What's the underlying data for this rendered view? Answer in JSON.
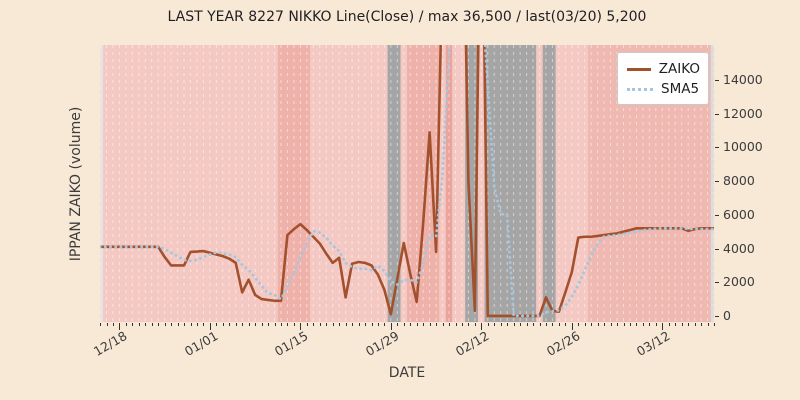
{
  "title": "LAST YEAR 8227 NIKKO Line(Close) / max 36,500 / last(03/20) 5,200",
  "ylabel": "IPPAN ZAIKO (volume)",
  "xlabel": "DATE",
  "legend": [
    {
      "label": "ZAIKO"
    },
    {
      "label": "SMA5"
    }
  ],
  "colors": {
    "figure_bg": "#f8e9d7",
    "plot_bg": "#f4c9c3",
    "zaiko_line": "#a3512d",
    "sma5_line": "#a6c6de",
    "gridline": "rgba(255,255,255,0.5)",
    "tick_text": "#3c3c3c",
    "title_text": "#1f1f1f",
    "band_light_pink": "#f4c9c3",
    "band_mid_pink": "#efb2ab",
    "band_dark_pink": "#eba49c",
    "band_gray": "#a5a5a5",
    "band_light_gray_first": "#e7e3e0",
    "band_light_gray_last": "#dcdcdc"
  },
  "chart_data": {
    "type": "line",
    "title": "LAST YEAR 8227 NIKKO Line(Close) / max 36,500 / last(03/20) 5,200",
    "xlabel": "DATE",
    "ylabel": "IPPAN ZAIKO (volume)",
    "max_value": 36500,
    "last_date": "03/20",
    "last_value": 5200,
    "ylim": [
      -360,
      16080
    ],
    "y_ticks": [
      0,
      2000,
      4000,
      6000,
      8000,
      10000,
      12000,
      14000
    ],
    "y_tick_side": "right",
    "x_tick_labels": [
      "12/18",
      "01/01",
      "01/15",
      "01/29",
      "02/12",
      "02/26",
      "03/12"
    ],
    "grid": "vertical-daily-dashed-white",
    "legend_position": "upper-right",
    "dates": [
      "12/15",
      "12/16",
      "12/17",
      "12/18",
      "12/19",
      "12/20",
      "12/21",
      "12/22",
      "12/23",
      "12/24",
      "12/25",
      "12/26",
      "12/27",
      "12/28",
      "12/29",
      "12/30",
      "12/31",
      "01/01",
      "01/02",
      "01/03",
      "01/04",
      "01/05",
      "01/06",
      "01/07",
      "01/08",
      "01/09",
      "01/10",
      "01/11",
      "01/12",
      "01/13",
      "01/14",
      "01/15",
      "01/16",
      "01/17",
      "01/18",
      "01/19",
      "01/20",
      "01/21",
      "01/22",
      "01/23",
      "01/24",
      "01/25",
      "01/26",
      "01/27",
      "01/28",
      "01/29",
      "01/30",
      "01/31",
      "02/01",
      "02/02",
      "02/03",
      "02/04",
      "02/05",
      "02/06",
      "02/07",
      "02/08",
      "02/09",
      "02/10",
      "02/11",
      "02/12",
      "02/13",
      "02/14",
      "02/15",
      "02/16",
      "02/17",
      "02/18",
      "02/19",
      "02/20",
      "02/21",
      "02/22",
      "02/23",
      "02/24",
      "02/25",
      "02/26",
      "02/27",
      "02/28",
      "03/01",
      "03/02",
      "03/03",
      "03/04",
      "03/05",
      "03/06",
      "03/07",
      "03/08",
      "03/09",
      "03/10",
      "03/11",
      "03/12",
      "03/13",
      "03/14",
      "03/15",
      "03/16",
      "03/17",
      "03/18",
      "03/19",
      "03/20"
    ],
    "series": [
      {
        "name": "ZAIKO",
        "style": "solid",
        "color": "#a3512d",
        "values": [
          4100,
          4100,
          4100,
          4100,
          4100,
          4100,
          4100,
          4100,
          4100,
          4100,
          3500,
          3000,
          3000,
          3000,
          3800,
          3820,
          3850,
          3750,
          3650,
          3550,
          3400,
          3150,
          1400,
          2150,
          1250,
          1000,
          950,
          900,
          900,
          4800,
          5150,
          5450,
          5100,
          4700,
          4300,
          3700,
          3150,
          3450,
          1100,
          3100,
          3200,
          3150,
          3000,
          2450,
          1550,
          100,
          2200,
          4330,
          2500,
          830,
          5500,
          10900,
          3800,
          21000,
          36500,
          30000,
          30000,
          8000,
          300,
          30000,
          0,
          0,
          0,
          0,
          0,
          0,
          0,
          0,
          0,
          1100,
          300,
          250,
          1400,
          2600,
          4650,
          4700,
          4700,
          4750,
          4800,
          4850,
          4900,
          5000,
          5100,
          5200,
          5200,
          5200,
          5200,
          5200,
          5200,
          5200,
          5200,
          5050,
          5150,
          5200,
          5200,
          5200
        ]
      },
      {
        "name": "SMA5",
        "style": "dotted",
        "color": "#a6c6de",
        "derived": "5-day moving average of ZAIKO (computed at render time)"
      }
    ],
    "background_bands": [
      {
        "from": "12/15",
        "to": "12/15",
        "color": "#e7e3e0"
      },
      {
        "from": "12/16",
        "to": "01/11",
        "color": "#f4c9c3"
      },
      {
        "from": "01/12",
        "to": "01/16",
        "color": "#efb2ab"
      },
      {
        "from": "01/17",
        "to": "01/28",
        "color": "#f4c9c3"
      },
      {
        "from": "01/29",
        "to": "01/30",
        "color": "#a5a5a5"
      },
      {
        "from": "01/31",
        "to": "01/31",
        "color": "#f4c9c3"
      },
      {
        "from": "02/01",
        "to": "02/05",
        "color": "#efb2ab"
      },
      {
        "from": "02/06",
        "to": "02/06",
        "color": "#f4c9c3"
      },
      {
        "from": "02/07",
        "to": "02/07",
        "color": "#eba49c"
      },
      {
        "from": "02/08",
        "to": "02/09",
        "color": "#f4c9c3"
      },
      {
        "from": "02/10",
        "to": "02/11",
        "color": "#a5a5a5"
      },
      {
        "from": "02/12",
        "to": "02/12",
        "color": "#f4c9c3"
      },
      {
        "from": "02/13",
        "to": "02/20",
        "color": "#a5a5a5"
      },
      {
        "from": "02/21",
        "to": "02/21",
        "color": "#f4c9c3"
      },
      {
        "from": "02/22",
        "to": "02/23",
        "color": "#a5a5a5"
      },
      {
        "from": "02/24",
        "to": "02/28",
        "color": "#f4c9c3"
      },
      {
        "from": "03/01",
        "to": "03/19",
        "color": "#efb8b1"
      },
      {
        "from": "03/20",
        "to": "03/20",
        "color": "#dcdcdc"
      }
    ]
  }
}
